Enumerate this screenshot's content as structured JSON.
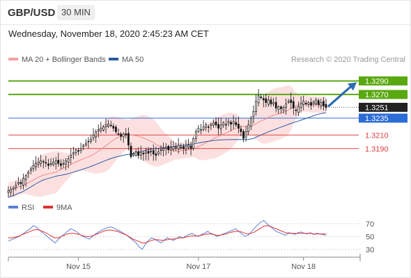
{
  "header": {
    "pair": "GBP/USD",
    "timeframe": "30 MIN",
    "datetime": "Wednesday, November 18, 2020 2:45:23 AM CET"
  },
  "legend": {
    "ma20": "MA 20 + Bollinger Bands",
    "ma50": "MA 50",
    "credit": "Research © 2020 Trading Central",
    "rsi": "RSI",
    "rsi_ma": "9MA"
  },
  "colors": {
    "ma20": "#f08a8a",
    "ma50": "#2c5aa0",
    "band": "#fbd6d6",
    "resistance": "#5aa80f",
    "support": "#e04040",
    "pivot": "#2c6cd6",
    "last": "#222222",
    "arrow": "#2c6cb0",
    "rsi": "#5b7fd6",
    "rsi_ma": "#e03030"
  },
  "chart_data": [
    {
      "type": "candlestick",
      "title": "GBP/USD 30 MIN",
      "ylim": [
        1.3124,
        1.331
      ],
      "x_ticks": [
        {
          "label": "Nov 15",
          "index": 28
        },
        {
          "label": "Nov 17",
          "index": 76
        },
        {
          "label": "Nov 18",
          "index": 118
        }
      ],
      "levels": [
        {
          "value": 1.329,
          "label": "1.3290",
          "kind": "resistance"
        },
        {
          "value": 1.327,
          "label": "1.3270",
          "kind": "resistance"
        },
        {
          "value": 1.3251,
          "label": "1.3251",
          "kind": "last"
        },
        {
          "value": 1.3235,
          "label": "1.3235",
          "kind": "pivot"
        },
        {
          "value": 1.321,
          "label": "1.3210",
          "kind": "support"
        },
        {
          "value": 1.319,
          "label": "1.3190",
          "kind": "support"
        }
      ],
      "close": [
        1.3128,
        1.313,
        1.3132,
        1.3136,
        1.314,
        1.3138,
        1.3146,
        1.315,
        1.3155,
        1.316,
        1.3165,
        1.3168,
        1.317,
        1.3172,
        1.3171,
        1.3169,
        1.3165,
        1.3168,
        1.317,
        1.3172,
        1.3168,
        1.3165,
        1.3168,
        1.3172,
        1.3175,
        1.318,
        1.3184,
        1.3188,
        1.3186,
        1.319,
        1.3195,
        1.3198,
        1.32,
        1.3204,
        1.321,
        1.3215,
        1.3218,
        1.322,
        1.3222,
        1.3225,
        1.3226,
        1.3224,
        1.322,
        1.3215,
        1.3212,
        1.3208,
        1.3212,
        1.321,
        1.3195,
        1.3178,
        1.3182,
        1.3185,
        1.318,
        1.3184,
        1.3182,
        1.3185,
        1.3183,
        1.3186,
        1.3182,
        1.318,
        1.3185,
        1.3188,
        1.319,
        1.3192,
        1.3188,
        1.3191,
        1.3193,
        1.3192,
        1.3195,
        1.3192,
        1.319,
        1.3193,
        1.3195,
        1.319,
        1.3205,
        1.3215,
        1.322,
        1.3218,
        1.3222,
        1.3225,
        1.3222,
        1.3226,
        1.3228,
        1.3225,
        1.322,
        1.3225,
        1.3228,
        1.3225,
        1.323,
        1.3226,
        1.323,
        1.3225,
        1.322,
        1.3215,
        1.3205,
        1.3215,
        1.3225,
        1.3235,
        1.3245,
        1.326,
        1.3268,
        1.3265,
        1.3262,
        1.3258,
        1.3262,
        1.3256,
        1.3258,
        1.325,
        1.3252,
        1.3249,
        1.3251,
        1.3256,
        1.326,
        1.3258,
        1.325,
        1.3246,
        1.3252,
        1.3257,
        1.326,
        1.3256,
        1.3258,
        1.3254,
        1.3259,
        1.3262,
        1.3255,
        1.3258,
        1.3253,
        1.3251
      ],
      "series": [
        {
          "name": "MA 20 + Bollinger Bands"
        },
        {
          "name": "MA 50"
        }
      ]
    },
    {
      "type": "line",
      "ylim": [
        20,
        85
      ],
      "y_ticks": [
        70,
        50,
        30
      ],
      "series": [
        {
          "name": "RSI",
          "values": [
            43,
            45,
            47,
            49,
            52,
            55,
            59,
            62,
            67,
            65,
            60,
            56,
            52,
            48,
            44,
            40,
            45,
            50,
            54,
            58,
            62,
            60,
            57,
            53,
            50,
            48,
            46,
            50,
            54,
            57,
            60,
            62,
            64,
            65,
            63,
            60,
            58,
            55,
            52,
            48,
            44,
            40,
            34,
            30,
            38,
            44,
            48,
            46,
            43,
            40,
            44,
            48,
            46,
            44,
            47,
            50,
            48,
            51,
            53,
            55,
            52,
            50,
            53,
            55,
            58,
            55,
            53,
            50,
            52,
            54,
            56,
            58,
            60,
            62,
            58,
            54,
            50,
            52,
            57,
            63,
            68,
            72,
            75,
            70,
            66,
            62,
            58,
            56,
            54,
            52,
            56,
            55,
            53,
            56,
            57,
            55,
            54,
            56,
            53,
            55,
            54,
            53,
            52
          ]
        },
        {
          "name": "9MA",
          "values": [
            48,
            48,
            49,
            50,
            52,
            54,
            56,
            58,
            60,
            61,
            60,
            58,
            56,
            53,
            50,
            48,
            48,
            50,
            52,
            54,
            55,
            55,
            54,
            53,
            51,
            50,
            50,
            51,
            53,
            55,
            57,
            59,
            60,
            60,
            59,
            58,
            56,
            54,
            52,
            49,
            46,
            44,
            42,
            40,
            40,
            42,
            44,
            45,
            45,
            44,
            44,
            45,
            46,
            46,
            47,
            48,
            48,
            49,
            50,
            51,
            51,
            51,
            52,
            53,
            54,
            54,
            53,
            52,
            52,
            53,
            54,
            56,
            57,
            58,
            58,
            57,
            55,
            54,
            55,
            57,
            60,
            63,
            66,
            67,
            66,
            64,
            62,
            60,
            58,
            56,
            55,
            55,
            55,
            55,
            55,
            55,
            55,
            55,
            54,
            54,
            54,
            54,
            54
          ]
        }
      ]
    }
  ]
}
